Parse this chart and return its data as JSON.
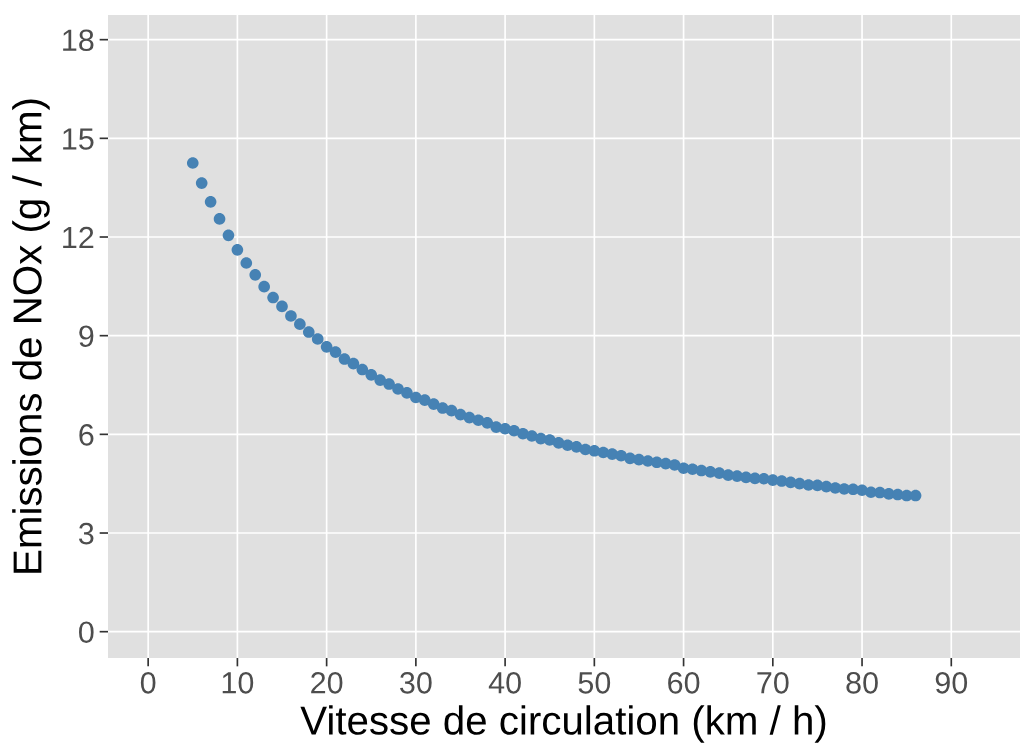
{
  "chart_data": {
    "type": "scatter",
    "xlabel": "Vitesse de circulation (km / h)",
    "ylabel": "Emissions de NOx (g / km)",
    "x": [
      5,
      6,
      7,
      8,
      9,
      10,
      11,
      12,
      13,
      14,
      15,
      16,
      17,
      18,
      19,
      20,
      21,
      22,
      23,
      24,
      25,
      26,
      27,
      28,
      29,
      30,
      31,
      32,
      33,
      34,
      35,
      36,
      37,
      38,
      39,
      40,
      41,
      42,
      43,
      44,
      45,
      46,
      47,
      48,
      49,
      50,
      51,
      52,
      53,
      54,
      55,
      56,
      57,
      58,
      59,
      60,
      61,
      62,
      63,
      64,
      65,
      66,
      67,
      68,
      69,
      70,
      71,
      72,
      73,
      74,
      75,
      76,
      77,
      78,
      79,
      80,
      81,
      82,
      83,
      84,
      85,
      86
    ],
    "series": [
      {
        "color": "#4682b4",
        "values": [
          14.25,
          13.64,
          13.07,
          12.55,
          12.05,
          11.61,
          11.21,
          10.85,
          10.49,
          10.16,
          9.89,
          9.6,
          9.35,
          9.11,
          8.9,
          8.66,
          8.5,
          8.29,
          8.15,
          7.97,
          7.81,
          7.65,
          7.53,
          7.38,
          7.26,
          7.12,
          7.04,
          6.92,
          6.8,
          6.72,
          6.6,
          6.51,
          6.43,
          6.35,
          6.22,
          6.17,
          6.11,
          6.02,
          5.95,
          5.87,
          5.83,
          5.74,
          5.67,
          5.62,
          5.54,
          5.5,
          5.45,
          5.4,
          5.35,
          5.27,
          5.23,
          5.19,
          5.15,
          5.11,
          5.07,
          4.97,
          4.94,
          4.9,
          4.86,
          4.82,
          4.76,
          4.73,
          4.69,
          4.66,
          4.65,
          4.61,
          4.58,
          4.54,
          4.5,
          4.46,
          4.45,
          4.41,
          4.37,
          4.34,
          4.33,
          4.3,
          4.24,
          4.23,
          4.19,
          4.17,
          4.14,
          4.14
        ]
      }
    ],
    "xlim": [
      -4.5,
      97.7
    ],
    "xticks": [
      0,
      10,
      20,
      30,
      40,
      50,
      60,
      70,
      80,
      90
    ],
    "ylim": [
      -0.8,
      18.75
    ],
    "yticks": [
      0,
      3,
      6,
      9,
      12,
      15,
      18
    ],
    "grid": true,
    "marker": "circle"
  }
}
